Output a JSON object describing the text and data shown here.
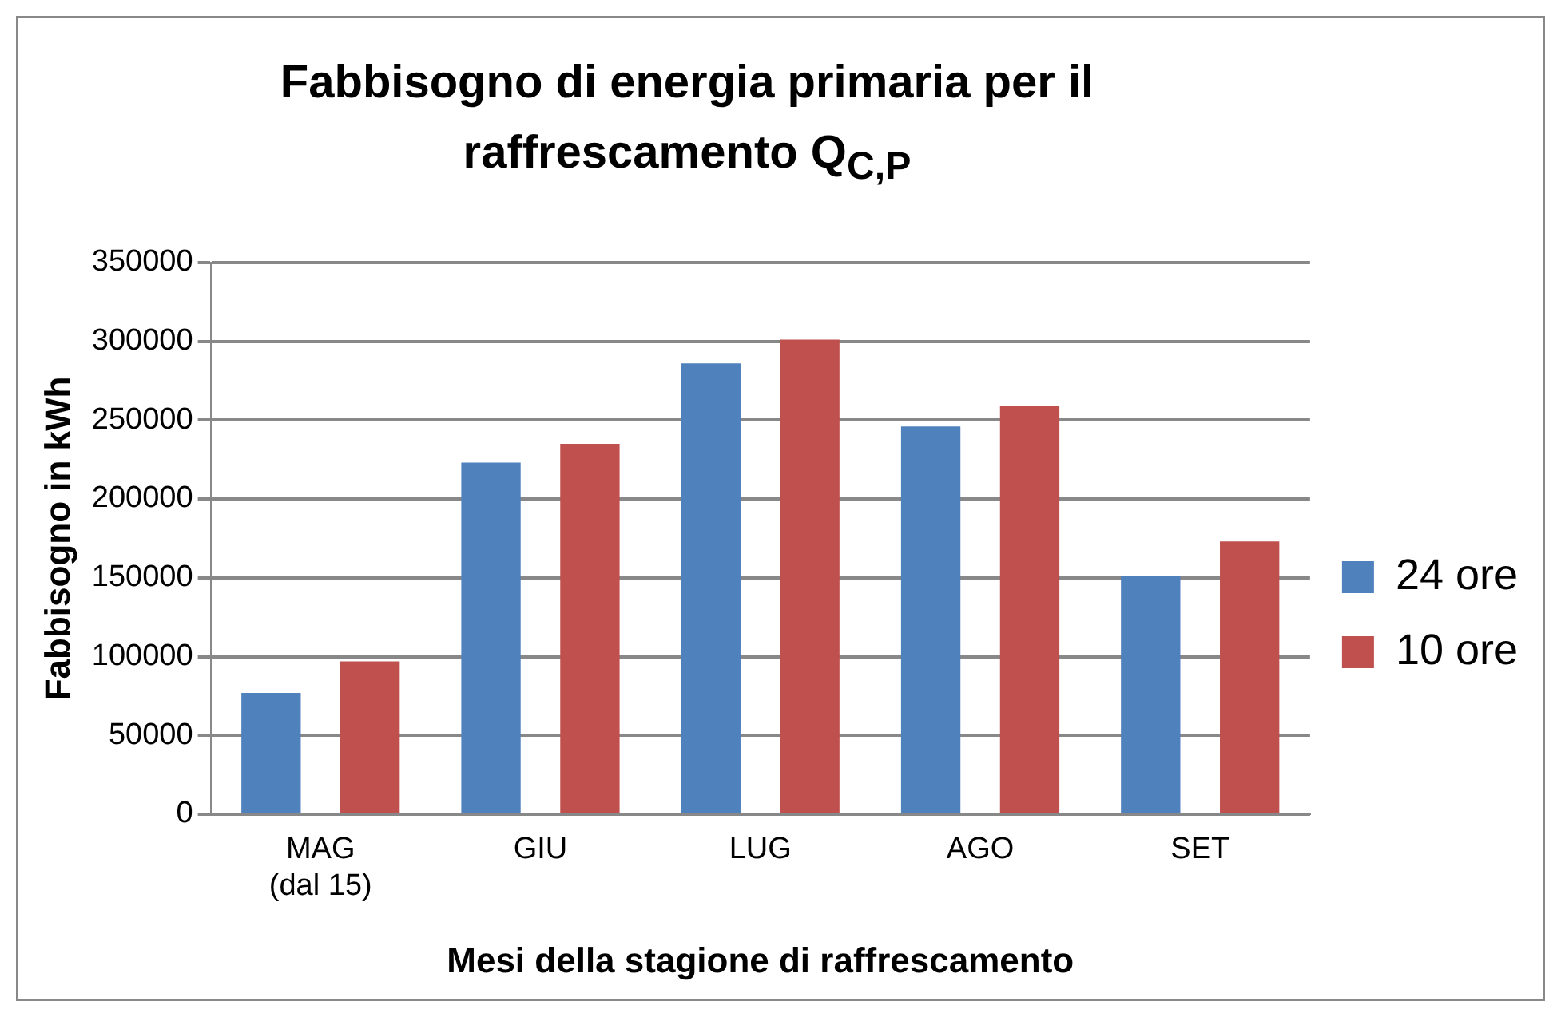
{
  "chart_data": {
    "type": "bar",
    "title": "Fabbisogno di energia primaria per il raffrescamento Q$_{C,P}$",
    "xlabel": "Mesi della stagione di raffrescamento",
    "ylabel": "Fabbisogno in kWh",
    "categories": [
      "MAG (dal 15)",
      "GIU",
      "LUG",
      "AGO",
      "SET"
    ],
    "series": [
      {
        "name": "24 ore",
        "color": "#4f81bd",
        "values": [
          77000,
          223000,
          286000,
          246000,
          151000
        ]
      },
      {
        "name": "10 ore",
        "color": "#c0504d",
        "values": [
          97000,
          235000,
          301000,
          259000,
          173000
        ]
      }
    ],
    "ylim": [
      0,
      350000
    ],
    "yticks": [
      0,
      50000,
      100000,
      150000,
      200000,
      250000,
      300000,
      350000
    ],
    "grid": "y",
    "legend": "right"
  }
}
